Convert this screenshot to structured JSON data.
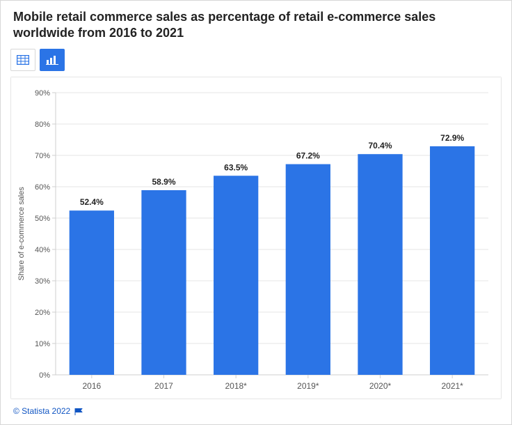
{
  "title": "Mobile retail commerce sales as percentage of retail e-commerce sales worldwide from 2016 to 2021",
  "toolbar": {
    "table_view": "Table view",
    "chart_view": "Chart view"
  },
  "chart": {
    "type": "bar",
    "ylabel": "Share of e-commerce sales",
    "categories": [
      "2016",
      "2017",
      "2018*",
      "2019*",
      "2020*",
      "2021*"
    ],
    "values": [
      52.4,
      58.9,
      63.5,
      67.2,
      70.4,
      72.9
    ],
    "value_suffix": "%",
    "bar_color": "#2b74e6",
    "ylim": [
      0,
      90
    ],
    "ytick_step": 10,
    "grid_color": "#e6e6e6",
    "axis_color": "#cfcfcf",
    "tick_color": "#cfcfcf",
    "background_color": "#ffffff",
    "label_fontsize": 11,
    "bar_label_fontsize": 12,
    "bar_label_weight": "bold",
    "bar_width_ratio": 0.62,
    "title_fontsize": 18,
    "title_color": "#222222"
  },
  "footer": {
    "copyright": "© Statista 2022",
    "link_color": "#1055c3"
  }
}
